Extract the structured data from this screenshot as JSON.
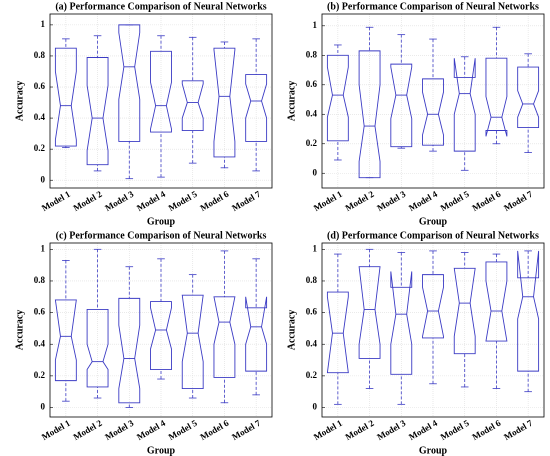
{
  "chart_data": [
    {
      "type": "box",
      "title": "(a) Performance Comparison of Neural Networks",
      "xlabel": "Group",
      "ylabel": "Accuracy",
      "categories": [
        "Model 1",
        "Model 2",
        "Model 3",
        "Model 4",
        "Model 5",
        "Model 6",
        "Model 7"
      ],
      "color": "#3b3bc4",
      "boxes": [
        {
          "min": 0.21,
          "q1": 0.22,
          "median": 0.48,
          "q3": 0.85,
          "max": 0.91,
          "notch_lo": 0.26,
          "notch_hi": 0.7
        },
        {
          "min": 0.06,
          "q1": 0.1,
          "median": 0.4,
          "q3": 0.79,
          "max": 0.93,
          "notch_lo": 0.19,
          "notch_hi": 0.61
        },
        {
          "min": 0.01,
          "q1": 0.25,
          "median": 0.73,
          "q3": 1.0,
          "max": 1.0,
          "notch_lo": 0.52,
          "notch_hi": 0.95
        },
        {
          "min": 0.02,
          "q1": 0.31,
          "median": 0.48,
          "q3": 0.83,
          "max": 0.93,
          "notch_lo": 0.33,
          "notch_hi": 0.63
        },
        {
          "min": 0.11,
          "q1": 0.32,
          "median": 0.5,
          "q3": 0.64,
          "max": 0.92,
          "notch_lo": 0.4,
          "notch_hi": 0.62
        },
        {
          "min": 0.08,
          "q1": 0.15,
          "median": 0.54,
          "q3": 0.85,
          "max": 0.89,
          "notch_lo": 0.25,
          "notch_hi": 0.84
        },
        {
          "min": 0.06,
          "q1": 0.25,
          "median": 0.51,
          "q3": 0.68,
          "max": 0.91,
          "notch_lo": 0.4,
          "notch_hi": 0.62
        }
      ],
      "ylim": [
        -0.05,
        1.07
      ],
      "yticks": [
        0,
        0.2,
        0.4,
        0.6,
        0.8,
        1
      ],
      "grid": true
    },
    {
      "type": "box",
      "title": "(b) Performance Comparison of Neural Networks",
      "xlabel": "Group",
      "ylabel": "Accuracy",
      "categories": [
        "Model 1",
        "Model 2",
        "Model 3",
        "Model 4",
        "Model 5",
        "Model 6",
        "Model 7"
      ],
      "color": "#3b3bc4",
      "boxes": [
        {
          "min": 0.09,
          "q1": 0.22,
          "median": 0.53,
          "q3": 0.8,
          "max": 0.87,
          "notch_lo": 0.38,
          "notch_hi": 0.72
        },
        {
          "min": -0.03,
          "q1": -0.03,
          "median": 0.32,
          "q3": 0.83,
          "max": 0.99,
          "notch_lo": 0.08,
          "notch_hi": 0.6
        },
        {
          "min": 0.17,
          "q1": 0.18,
          "median": 0.53,
          "q3": 0.74,
          "max": 0.94,
          "notch_lo": 0.37,
          "notch_hi": 0.72
        },
        {
          "min": 0.15,
          "q1": 0.19,
          "median": 0.4,
          "q3": 0.64,
          "max": 0.91,
          "notch_lo": 0.26,
          "notch_hi": 0.55
        },
        {
          "min": 0.02,
          "q1": 0.15,
          "median": 0.54,
          "q3": 0.65,
          "max": 0.79,
          "notch_lo": 0.4,
          "notch_hi": 0.78
        },
        {
          "min": 0.2,
          "q1": 0.29,
          "median": 0.38,
          "q3": 0.78,
          "max": 0.99,
          "notch_lo": 0.25,
          "notch_hi": 0.52
        },
        {
          "min": 0.14,
          "q1": 0.31,
          "median": 0.47,
          "q3": 0.72,
          "max": 0.81,
          "notch_lo": 0.38,
          "notch_hi": 0.56
        }
      ],
      "ylim": [
        -0.1,
        1.08
      ],
      "yticks": [
        0,
        0.2,
        0.4,
        0.6,
        0.8,
        1
      ],
      "grid": true
    },
    {
      "type": "box",
      "title": "(c) Performance Comparison of Neural Networks",
      "xlabel": "Group",
      "ylabel": "Accuracy",
      "categories": [
        "Model 1",
        "Model 2",
        "Model 3",
        "Model 4",
        "Model 5",
        "Model 6",
        "Model 7"
      ],
      "color": "#3b3bc4",
      "boxes": [
        {
          "min": 0.04,
          "q1": 0.17,
          "median": 0.45,
          "q3": 0.68,
          "max": 0.93,
          "notch_lo": 0.3,
          "notch_hi": 0.68
        },
        {
          "min": 0.06,
          "q1": 0.13,
          "median": 0.29,
          "q3": 0.62,
          "max": 1.0,
          "notch_lo": 0.24,
          "notch_hi": 0.4
        },
        {
          "min": 0.0,
          "q1": 0.03,
          "median": 0.31,
          "q3": 0.69,
          "max": 0.89,
          "notch_lo": 0.12,
          "notch_hi": 0.52
        },
        {
          "min": 0.18,
          "q1": 0.24,
          "median": 0.49,
          "q3": 0.67,
          "max": 0.94,
          "notch_lo": 0.37,
          "notch_hi": 0.63
        },
        {
          "min": 0.06,
          "q1": 0.12,
          "median": 0.47,
          "q3": 0.71,
          "max": 0.84,
          "notch_lo": 0.29,
          "notch_hi": 0.71
        },
        {
          "min": 0.03,
          "q1": 0.19,
          "median": 0.54,
          "q3": 0.7,
          "max": 0.99,
          "notch_lo": 0.4,
          "notch_hi": 0.7
        },
        {
          "min": 0.08,
          "q1": 0.23,
          "median": 0.51,
          "q3": 0.63,
          "max": 0.94,
          "notch_lo": 0.4,
          "notch_hi": 0.7
        }
      ],
      "ylim": [
        -0.06,
        1.04
      ],
      "yticks": [
        0,
        0.2,
        0.4,
        0.6,
        0.8,
        1
      ],
      "grid": true
    },
    {
      "type": "box",
      "title": "(d) Performance Comparison of Neural Networks",
      "xlabel": "Group",
      "ylabel": "Accuracy",
      "categories": [
        "Model 1",
        "Model 2",
        "Model 3",
        "Model 4",
        "Model 5",
        "Model 6",
        "Model 7"
      ],
      "color": "#3b3bc4",
      "boxes": [
        {
          "min": 0.02,
          "q1": 0.22,
          "median": 0.47,
          "q3": 0.73,
          "max": 0.97,
          "notch_lo": 0.22,
          "notch_hi": 0.7
        },
        {
          "min": 0.12,
          "q1": 0.31,
          "median": 0.62,
          "q3": 0.89,
          "max": 1.0,
          "notch_lo": 0.4,
          "notch_hi": 0.89
        },
        {
          "min": 0.02,
          "q1": 0.21,
          "median": 0.59,
          "q3": 0.76,
          "max": 0.98,
          "notch_lo": 0.4,
          "notch_hi": 0.86
        },
        {
          "min": 0.15,
          "q1": 0.44,
          "median": 0.61,
          "q3": 0.84,
          "max": 0.99,
          "notch_lo": 0.45,
          "notch_hi": 0.76
        },
        {
          "min": 0.13,
          "q1": 0.34,
          "median": 0.66,
          "q3": 0.88,
          "max": 0.98,
          "notch_lo": 0.45,
          "notch_hi": 0.88
        },
        {
          "min": 0.12,
          "q1": 0.42,
          "median": 0.61,
          "q3": 0.92,
          "max": 0.97,
          "notch_lo": 0.42,
          "notch_hi": 0.8
        },
        {
          "min": 0.1,
          "q1": 0.23,
          "median": 0.7,
          "q3": 0.82,
          "max": 0.99,
          "notch_lo": 0.56,
          "notch_hi": 0.99
        }
      ],
      "ylim": [
        -0.06,
        1.04
      ],
      "yticks": [
        0,
        0.2,
        0.4,
        0.6,
        0.8,
        1
      ],
      "grid": true
    }
  ]
}
